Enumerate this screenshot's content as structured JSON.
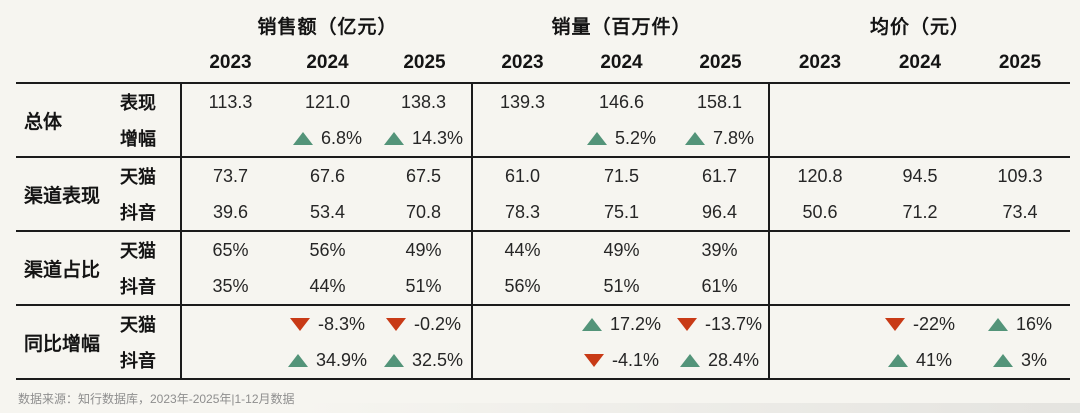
{
  "colors": {
    "up_green": "#539479",
    "down_red": "#c83a16",
    "rule_line": "#1b1b1b",
    "background": "#f6f5f0"
  },
  "icons": {
    "up": "triangle-up-icon",
    "down": "triangle-down-icon"
  },
  "header": {
    "groups": [
      {
        "title": "销售额（亿元）",
        "years": [
          "2023",
          "2024",
          "2025"
        ]
      },
      {
        "title": "销量（百万件）",
        "years": [
          "2023",
          "2024",
          "2025"
        ]
      },
      {
        "title": "均价（元）",
        "years": [
          "2023",
          "2024",
          "2025"
        ]
      }
    ]
  },
  "table": {
    "row_groups": [
      {
        "label": "总体",
        "rows": [
          {
            "sub": "表现",
            "cells": [
              {
                "text": "113.3"
              },
              {
                "text": "121.0"
              },
              {
                "text": "138.3"
              },
              {
                "text": "139.3"
              },
              {
                "text": "146.6"
              },
              {
                "text": "158.1"
              },
              {
                "text": ""
              },
              {
                "text": ""
              },
              {
                "text": ""
              }
            ]
          },
          {
            "sub": "增幅",
            "cells": [
              {
                "text": ""
              },
              {
                "arrow": "up",
                "text": "6.8%"
              },
              {
                "arrow": "up",
                "text": "14.3%"
              },
              {
                "text": ""
              },
              {
                "arrow": "up",
                "text": "5.2%"
              },
              {
                "arrow": "up",
                "text": "7.8%"
              },
              {
                "text": ""
              },
              {
                "text": ""
              },
              {
                "text": ""
              }
            ]
          }
        ]
      },
      {
        "label": "渠道表现",
        "rows": [
          {
            "sub": "天猫",
            "cells": [
              {
                "text": "73.7"
              },
              {
                "text": "67.6"
              },
              {
                "text": "67.5"
              },
              {
                "text": "61.0"
              },
              {
                "text": "71.5"
              },
              {
                "text": "61.7"
              },
              {
                "text": "120.8"
              },
              {
                "text": "94.5"
              },
              {
                "text": "109.3"
              }
            ]
          },
          {
            "sub": "抖音",
            "cells": [
              {
                "text": "39.6"
              },
              {
                "text": "53.4"
              },
              {
                "text": "70.8"
              },
              {
                "text": "78.3"
              },
              {
                "text": "75.1"
              },
              {
                "text": "96.4"
              },
              {
                "text": "50.6"
              },
              {
                "text": "71.2"
              },
              {
                "text": "73.4"
              }
            ]
          }
        ]
      },
      {
        "label": "渠道占比",
        "rows": [
          {
            "sub": "天猫",
            "cells": [
              {
                "text": "65%"
              },
              {
                "text": "56%"
              },
              {
                "text": "49%"
              },
              {
                "text": "44%"
              },
              {
                "text": "49%"
              },
              {
                "text": "39%"
              },
              {
                "text": ""
              },
              {
                "text": ""
              },
              {
                "text": ""
              }
            ]
          },
          {
            "sub": "抖音",
            "cells": [
              {
                "text": "35%"
              },
              {
                "text": "44%"
              },
              {
                "text": "51%"
              },
              {
                "text": "56%"
              },
              {
                "text": "51%"
              },
              {
                "text": "61%"
              },
              {
                "text": ""
              },
              {
                "text": ""
              },
              {
                "text": ""
              }
            ]
          }
        ]
      },
      {
        "label": "同比增幅",
        "rows": [
          {
            "sub": "天猫",
            "cells": [
              {
                "text": ""
              },
              {
                "arrow": "down",
                "text": "-8.3%"
              },
              {
                "arrow": "down",
                "text": "-0.2%"
              },
              {
                "text": ""
              },
              {
                "arrow": "up",
                "text": "17.2%"
              },
              {
                "arrow": "down",
                "text": "-13.7%"
              },
              {
                "text": ""
              },
              {
                "arrow": "down",
                "text": "-22%"
              },
              {
                "arrow": "up",
                "text": "16%"
              }
            ]
          },
          {
            "sub": "抖音",
            "cells": [
              {
                "text": ""
              },
              {
                "arrow": "up",
                "text": "34.9%"
              },
              {
                "arrow": "up",
                "text": "32.5%"
              },
              {
                "text": ""
              },
              {
                "arrow": "down",
                "text": "-4.1%"
              },
              {
                "arrow": "up",
                "text": "28.4%"
              },
              {
                "text": ""
              },
              {
                "arrow": "up",
                "text": "41%"
              },
              {
                "arrow": "up",
                "text": "3%"
              }
            ]
          }
        ]
      }
    ]
  },
  "footer": {
    "source": "数据来源：知行数据库，2023年-2025年|1-12月数据"
  },
  "chart_data": {
    "type": "table",
    "column_groups": [
      {
        "title": "销售额（亿元）",
        "years": [
          "2023",
          "2024",
          "2025"
        ]
      },
      {
        "title": "销量（百万件）",
        "years": [
          "2023",
          "2024",
          "2025"
        ]
      },
      {
        "title": "均价（元）",
        "years": [
          "2023",
          "2024",
          "2025"
        ]
      }
    ],
    "rows": [
      {
        "group": "总体",
        "metric": "表现",
        "sales": [
          113.3,
          121.0,
          138.3
        ],
        "volume": [
          139.3,
          146.6,
          158.1
        ],
        "price": [
          null,
          null,
          null
        ]
      },
      {
        "group": "总体",
        "metric": "增幅",
        "sales": [
          null,
          "+6.8%",
          "+14.3%"
        ],
        "volume": [
          null,
          "+5.2%",
          "+7.8%"
        ],
        "price": [
          null,
          null,
          null
        ]
      },
      {
        "group": "渠道表现",
        "metric": "天猫",
        "sales": [
          73.7,
          67.6,
          67.5
        ],
        "volume": [
          61.0,
          71.5,
          61.7
        ],
        "price": [
          120.8,
          94.5,
          109.3
        ]
      },
      {
        "group": "渠道表现",
        "metric": "抖音",
        "sales": [
          39.6,
          53.4,
          70.8
        ],
        "volume": [
          78.3,
          75.1,
          96.4
        ],
        "price": [
          50.6,
          71.2,
          73.4
        ]
      },
      {
        "group": "渠道占比",
        "metric": "天猫",
        "sales": [
          "65%",
          "56%",
          "49%"
        ],
        "volume": [
          "44%",
          "49%",
          "39%"
        ],
        "price": [
          null,
          null,
          null
        ]
      },
      {
        "group": "渠道占比",
        "metric": "抖音",
        "sales": [
          "35%",
          "44%",
          "51%"
        ],
        "volume": [
          "56%",
          "51%",
          "61%"
        ],
        "price": [
          null,
          null,
          null
        ]
      },
      {
        "group": "同比增幅",
        "metric": "天猫",
        "sales": [
          null,
          "-8.3%",
          "-0.2%"
        ],
        "volume": [
          null,
          "+17.2%",
          "-13.7%"
        ],
        "price": [
          null,
          "-22%",
          "+16%"
        ]
      },
      {
        "group": "同比增幅",
        "metric": "抖音",
        "sales": [
          null,
          "+34.9%",
          "+32.5%"
        ],
        "volume": [
          null,
          "-4.1%",
          "+28.4%"
        ],
        "price": [
          null,
          "+41%",
          "+3%"
        ]
      }
    ],
    "source_note": "数据来源：知行数据库，2023年-2025年|1-12月数据",
    "legend": {
      "up_triangle": "increase (green)",
      "down_triangle": "decrease (red)"
    }
  }
}
